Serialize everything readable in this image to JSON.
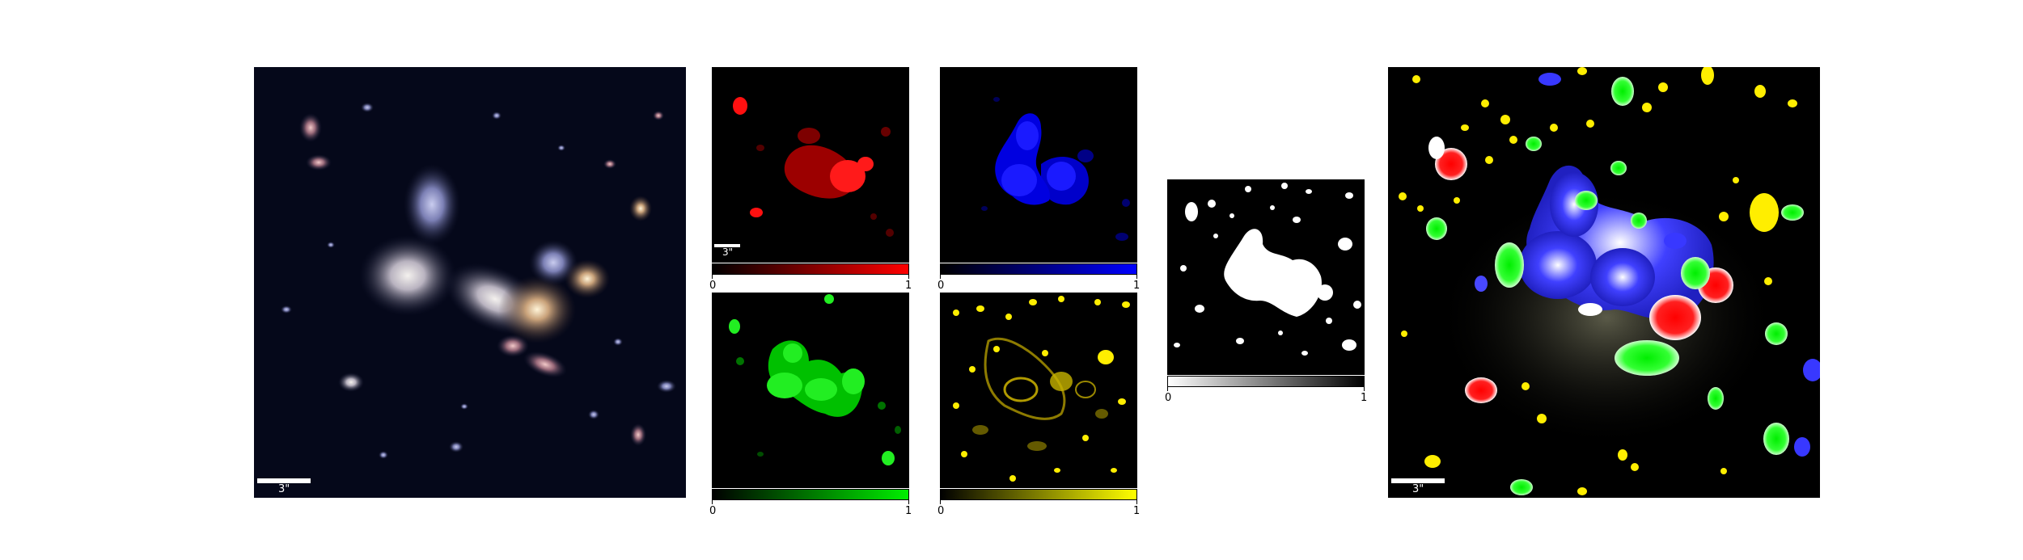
{
  "scale_bar_label": "3\"",
  "colorbars": {
    "red": {
      "min": "0",
      "max": "1",
      "color": "#ff0000"
    },
    "blue": {
      "min": "0",
      "max": "1",
      "color": "#0000ff"
    },
    "green": {
      "min": "0",
      "max": "1",
      "color": "#00dd00"
    },
    "yellow": {
      "min": "0",
      "max": "1",
      "color": "#ffff00"
    },
    "gray": {
      "min": "0",
      "max": "1",
      "color": "#000000"
    }
  }
}
